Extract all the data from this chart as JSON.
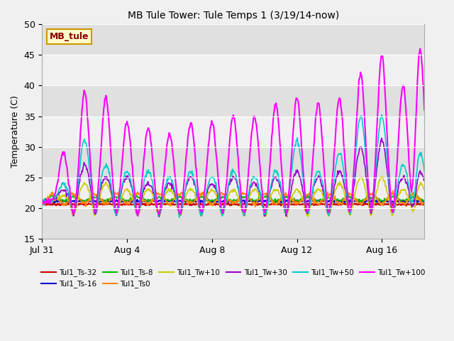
{
  "title": "MB Tule Tower: Tule Temps 1 (3/19/14-now)",
  "ylabel": "Temperature (C)",
  "xlabel": "",
  "ylim": [
    15,
    50
  ],
  "yticks": [
    15,
    20,
    25,
    30,
    35,
    40,
    45,
    50
  ],
  "bg_color": "#f0f0f0",
  "plot_bg_light": "#f0f0f0",
  "plot_bg_dark": "#e0e0e0",
  "legend_label": "MB_tule",
  "series": [
    {
      "name": "Tul1_Ts-32",
      "color": "#cc0000",
      "lw": 1.5
    },
    {
      "name": "Tul1_Ts-16",
      "color": "#0000cc",
      "lw": 1.5
    },
    {
      "name": "Tul1_Ts-8",
      "color": "#00bb00",
      "lw": 1.2
    },
    {
      "name": "Tul1_Ts0",
      "color": "#ff8800",
      "lw": 1.2
    },
    {
      "name": "Tul1_Tw+10",
      "color": "#cccc00",
      "lw": 1.2
    },
    {
      "name": "Tul1_Tw+30",
      "color": "#9900cc",
      "lw": 1.2
    },
    {
      "name": "Tul1_Tw+50",
      "color": "#00cccc",
      "lw": 1.2
    },
    {
      "name": "Tul1_Tw+100",
      "color": "#ff00ff",
      "lw": 1.5
    }
  ],
  "xtick_labels": [
    "Jul 31",
    "Aug 4",
    "Aug 8",
    "Aug 12",
    "Aug 16"
  ],
  "xtick_positions": [
    0,
    4,
    8,
    12,
    16
  ],
  "peak_days": [
    1.0,
    2.0,
    3.0,
    4.0,
    5.0,
    6.0,
    7.0,
    8.0,
    9.0,
    10.0,
    11.0,
    12.0,
    13.0,
    14.0,
    15.0,
    16.0,
    17.0,
    17.8
  ],
  "tw100_peaks": [
    29,
    39,
    38,
    34,
    33,
    32,
    34,
    34,
    35,
    35,
    37,
    38,
    37,
    38,
    42,
    45,
    40,
    46
  ],
  "tw50_peaks": [
    24,
    31,
    27,
    26,
    26,
    25,
    26,
    25,
    26,
    25,
    26,
    31,
    26,
    29,
    35,
    35,
    27,
    29
  ],
  "tw30_peaks": [
    23,
    27,
    25,
    25,
    24,
    24,
    25,
    24,
    25,
    24,
    25,
    26,
    25,
    26,
    30,
    31,
    25,
    26
  ],
  "tw10_peaks": [
    22,
    24,
    24,
    23,
    23,
    23,
    23,
    23,
    23,
    23,
    23,
    23,
    23,
    24,
    25,
    25,
    23,
    24
  ]
}
